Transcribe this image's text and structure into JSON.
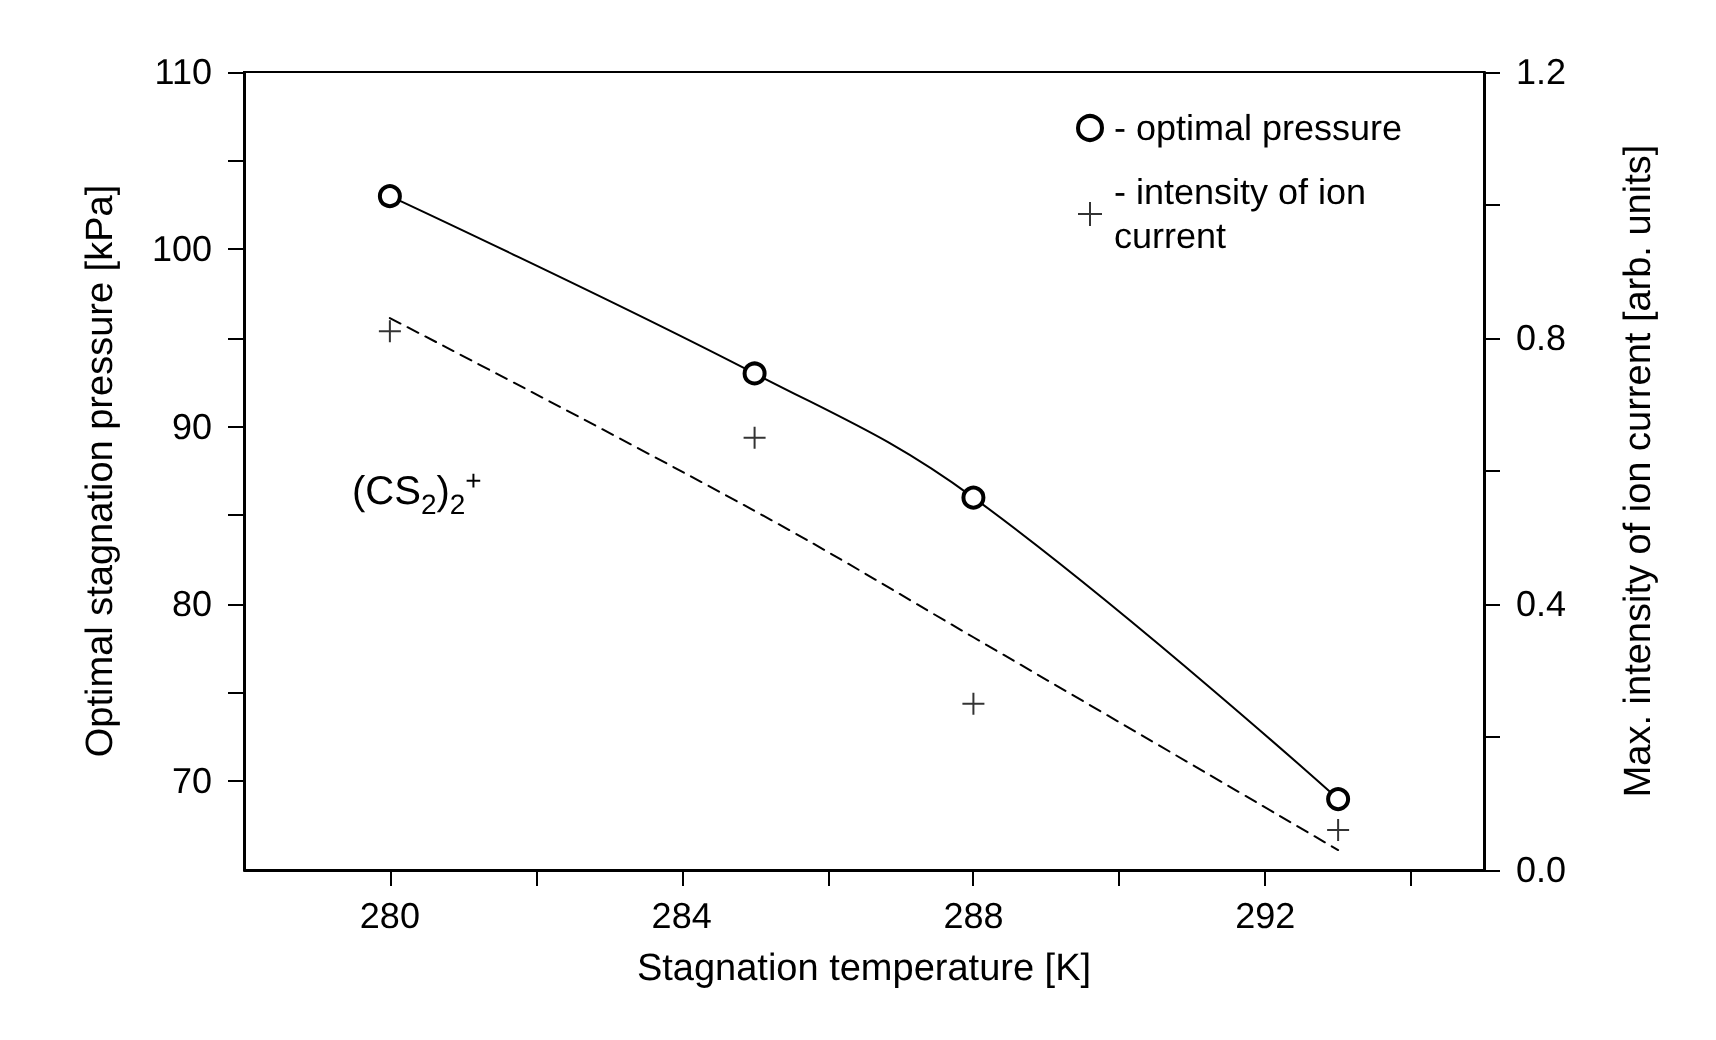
{
  "chart_data": {
    "type": "line",
    "xlabel": "Stagnation temperature [K]",
    "ylabel": "Optimal stagnation pressure [kPa]",
    "y2label": "Max. intensity of ion current [arb. units]",
    "annotations": [
      "(CS$_{2}$)$_{2}$$^{+}$"
    ],
    "x": [
      280,
      285,
      288,
      293
    ],
    "series": [
      {
        "name": "- optimal pressure",
        "color": "#000000",
        "marker": "circle",
        "line_style": "solid",
        "values": [
          103,
          93,
          86,
          69
        ]
      },
      {
        "name": "- intensity of ion current",
        "type": "scatter",
        "axis": "y2",
        "color": "#000000",
        "marker": "cross",
        "values": [
          0.81,
          0.65,
          0.25,
          0.06
        ]
      },
      {
        "type": "line",
        "axis": "y2",
        "color": "#000000",
        "marker": "none",
        "line_style": "dashed",
        "x": [
          280,
          285,
          288,
          293
        ],
        "values": [
          0.83,
          0.54,
          0.35,
          0.03
        ]
      }
    ],
    "xlim": [
      278,
      295
    ],
    "xticks": [
      280,
      {
        "value": 282,
        "label": null
      },
      284,
      {
        "value": 286,
        "label": null
      },
      288,
      {
        "value": 290,
        "label": null
      },
      292,
      {
        "value": 294,
        "label": null
      }
    ],
    "ylim": [
      65,
      110
    ],
    "yticks": [
      70,
      {
        "value": 75,
        "label": null
      },
      80,
      {
        "value": 85,
        "label": null
      },
      90,
      {
        "value": 95,
        "label": null
      },
      100,
      {
        "value": 105,
        "label": null
      },
      110
    ],
    "y2lim": [
      0,
      1.2
    ],
    "y2ticks": [
      {
        "value": 0,
        "label": "0.0"
      },
      {
        "value": 0.2,
        "label": null
      },
      {
        "value": 0.4,
        "label": "0.4"
      },
      {
        "value": 0.6,
        "label": null
      },
      {
        "value": 0.8,
        "label": "0.8"
      },
      {
        "value": 1.0,
        "label": null
      },
      {
        "value": 1.2,
        "label": "1.2"
      }
    ],
    "grid": false,
    "legend": "top right"
  }
}
